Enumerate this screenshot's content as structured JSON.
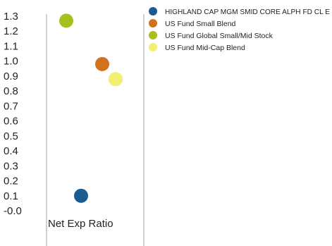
{
  "chart_data": {
    "type": "scatter",
    "title": "",
    "xlabel": "Net Exp Ratio",
    "ylabel": "",
    "ylim": [
      -0.05,
      1.35
    ],
    "yticks": [
      "-0.0",
      "0.1",
      "0.2",
      "0.3",
      "0.4",
      "0.5",
      "0.6",
      "0.7",
      "0.8",
      "0.9",
      "1.0",
      "1.1",
      "1.2",
      "1.3"
    ],
    "grid": "vertical",
    "legend_position": "top-right",
    "series": [
      {
        "name": "HIGHLAND CAP MGM SMID CORE ALPH FD CL E",
        "value": 0.1,
        "color": "#1a5c91"
      },
      {
        "name": "US Fund Small Blend",
        "value": 0.98,
        "color": "#d4711f"
      },
      {
        "name": "US Fund Global Small/Mid Stock",
        "value": 1.27,
        "color": "#a9bf1f"
      },
      {
        "name": "US Fund Mid-Cap Blend",
        "value": 0.88,
        "color": "#f0ef70"
      }
    ]
  }
}
